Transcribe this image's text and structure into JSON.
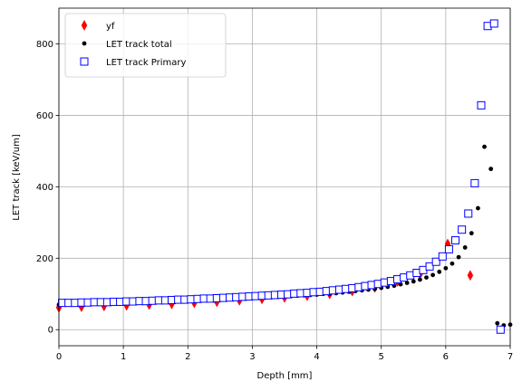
{
  "chart_data": {
    "type": "scatter",
    "title": "",
    "xlabel": "Depth [mm]",
    "ylabel": "LET track [keV/um]",
    "xlim": [
      0,
      7
    ],
    "ylim": [
      -45,
      900
    ],
    "xticks": [
      0,
      1,
      2,
      3,
      4,
      5,
      6,
      7
    ],
    "yticks": [
      0,
      200,
      400,
      600,
      800
    ],
    "grid": true,
    "legend_position": "top-left",
    "series": [
      {
        "name": "yf",
        "marker": "thin_diamond",
        "color": "#ff0000",
        "x": [
          0.0,
          0.35,
          0.7,
          1.05,
          1.4,
          1.75,
          2.1,
          2.45,
          2.8,
          3.15,
          3.5,
          3.85,
          4.2,
          4.55,
          4.9,
          5.25,
          5.6,
          6.03,
          6.38
        ],
        "y": [
          62,
          64,
          66,
          68,
          70,
          72,
          75,
          78,
          82,
          86,
          90,
          95,
          100,
          108,
          118,
          135,
          155,
          240,
          152
        ]
      },
      {
        "name": "LET track total",
        "marker": "dot",
        "color": "#000000",
        "x": [
          0.0,
          0.1,
          0.2,
          0.3,
          0.4,
          0.5,
          0.6,
          0.7,
          0.8,
          0.9,
          1.0,
          1.1,
          1.2,
          1.3,
          1.4,
          1.5,
          1.6,
          1.7,
          1.8,
          1.9,
          2.0,
          2.1,
          2.2,
          2.3,
          2.4,
          2.5,
          2.6,
          2.7,
          2.8,
          2.9,
          3.0,
          3.1,
          3.2,
          3.3,
          3.4,
          3.5,
          3.6,
          3.7,
          3.8,
          3.9,
          4.0,
          4.1,
          4.2,
          4.3,
          4.4,
          4.5,
          4.6,
          4.7,
          4.8,
          4.9,
          5.0,
          5.1,
          5.2,
          5.3,
          5.4,
          5.5,
          5.6,
          5.7,
          5.8,
          5.9,
          6.0,
          6.1,
          6.2,
          6.3,
          6.4,
          6.5,
          6.6,
          6.7,
          6.8,
          6.9,
          7.0
        ],
        "y": [
          70,
          70,
          71,
          71,
          71,
          72,
          72,
          72,
          73,
          73,
          74,
          74,
          75,
          75,
          76,
          76,
          77,
          78,
          78,
          79,
          80,
          80,
          81,
          82,
          82,
          83,
          84,
          85,
          86,
          87,
          88,
          89,
          90,
          91,
          92,
          93,
          94,
          95,
          96,
          97,
          98,
          100,
          101,
          102,
          104,
          106,
          108,
          110,
          112,
          114,
          117,
          120,
          123,
          127,
          131,
          135,
          140,
          146,
          153,
          162,
          172,
          185,
          203,
          230,
          270,
          340,
          512,
          450,
          18,
          12,
          14
        ]
      },
      {
        "name": "LET track Primary",
        "marker": "square_open",
        "color": "#0000ff",
        "x": [
          0.05,
          0.15,
          0.25,
          0.35,
          0.45,
          0.55,
          0.65,
          0.75,
          0.85,
          0.95,
          1.05,
          1.15,
          1.25,
          1.35,
          1.45,
          1.55,
          1.65,
          1.75,
          1.85,
          1.95,
          2.05,
          2.15,
          2.25,
          2.35,
          2.45,
          2.55,
          2.65,
          2.75,
          2.85,
          2.95,
          3.05,
          3.15,
          3.25,
          3.35,
          3.45,
          3.55,
          3.65,
          3.75,
          3.85,
          3.95,
          4.05,
          4.15,
          4.25,
          4.35,
          4.45,
          4.55,
          4.65,
          4.75,
          4.85,
          4.95,
          5.05,
          5.15,
          5.25,
          5.35,
          5.45,
          5.55,
          5.65,
          5.75,
          5.85,
          5.95,
          6.05,
          6.15,
          6.25,
          6.35,
          6.45,
          6.55,
          6.65,
          6.75,
          6.85
        ],
        "y": [
          75,
          75,
          75,
          76,
          76,
          77,
          77,
          77,
          78,
          78,
          79,
          79,
          80,
          80,
          81,
          82,
          82,
          83,
          84,
          84,
          85,
          86,
          87,
          87,
          88,
          89,
          90,
          91,
          92,
          93,
          94,
          95,
          96,
          97,
          98,
          99,
          101,
          102,
          103,
          105,
          106,
          108,
          110,
          112,
          114,
          116,
          119,
          122,
          125,
          128,
          132,
          136,
          141,
          146,
          152,
          159,
          167,
          177,
          190,
          205,
          225,
          250,
          280,
          325,
          410,
          628,
          850,
          857,
          0
        ]
      }
    ]
  }
}
